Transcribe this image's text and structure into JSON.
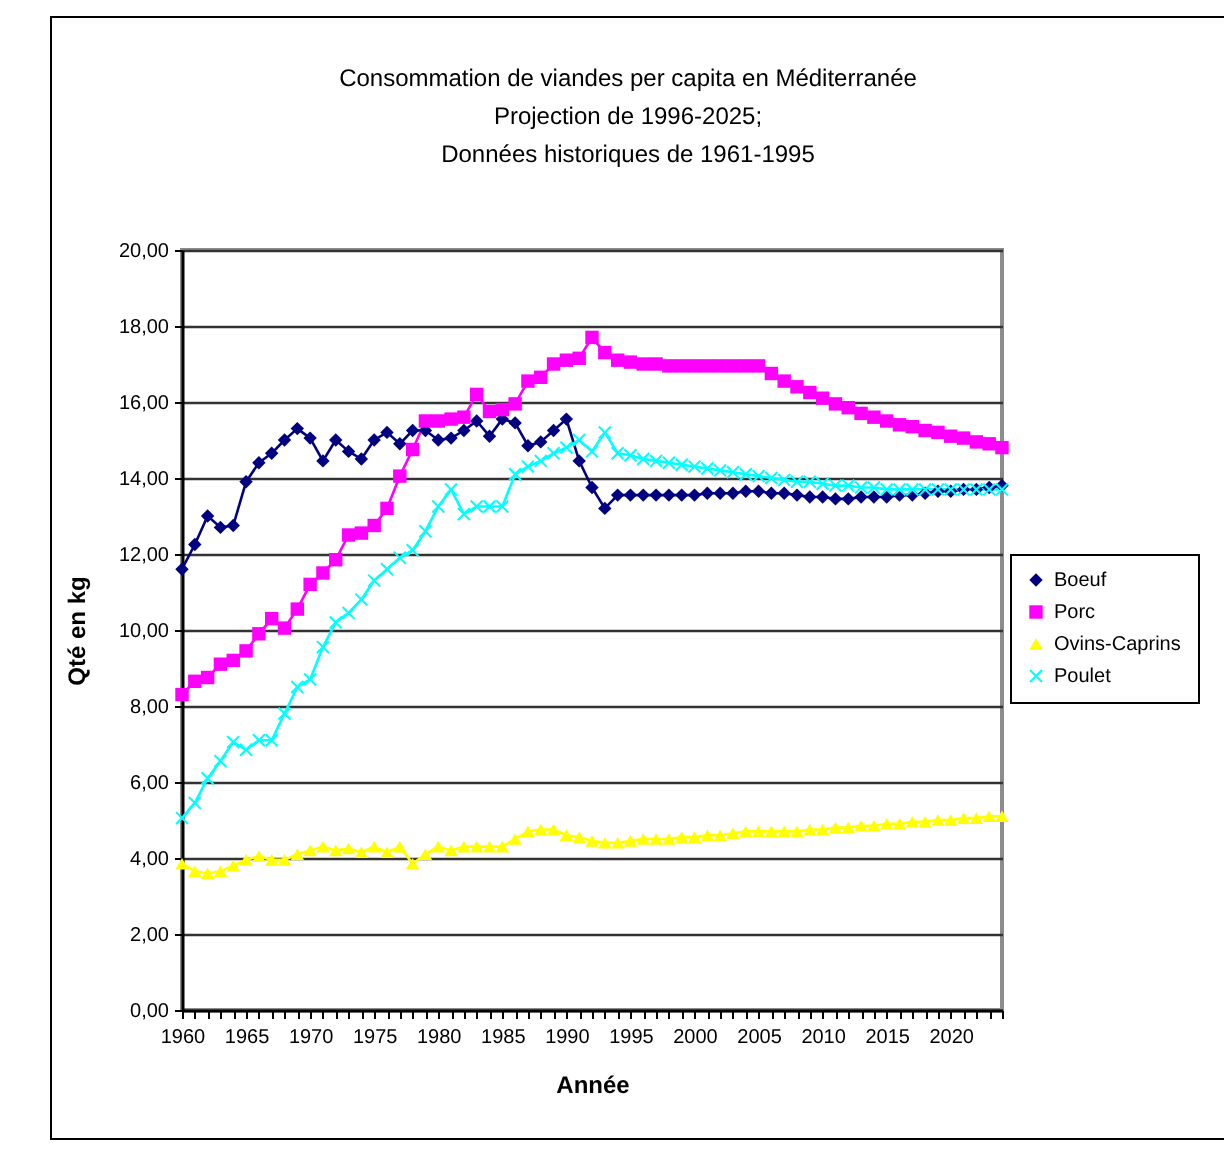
{
  "chart_data": {
    "type": "line",
    "title": "Consommation de viandes per capita en Méditerranée\nProjection de 1996-2025;\nDonnées historiques de 1961-1995",
    "xlabel": "Année",
    "ylabel": "Qté en kg",
    "x": [
      1960,
      1961,
      1962,
      1963,
      1964,
      1965,
      1966,
      1967,
      1968,
      1969,
      1970,
      1971,
      1972,
      1973,
      1974,
      1975,
      1976,
      1977,
      1978,
      1979,
      1980,
      1981,
      1982,
      1983,
      1984,
      1985,
      1986,
      1987,
      1988,
      1989,
      1990,
      1991,
      1992,
      1993,
      1994,
      1995,
      1996,
      1997,
      1998,
      1999,
      2000,
      2001,
      2002,
      2003,
      2004,
      2005,
      2006,
      2007,
      2008,
      2009,
      2010,
      2011,
      2012,
      2013,
      2014,
      2015,
      2016,
      2017,
      2018,
      2019,
      2020,
      2021,
      2022,
      2023,
      2024
    ],
    "series": [
      {
        "name": "Boeuf",
        "color": "#000080",
        "marker": "diamond",
        "values": [
          11.6,
          12.25,
          13.0,
          12.7,
          12.75,
          13.9,
          14.4,
          14.65,
          15.0,
          15.3,
          15.05,
          14.45,
          15.0,
          14.7,
          14.5,
          15.0,
          15.2,
          14.9,
          15.25,
          15.25,
          15.0,
          15.05,
          15.25,
          15.5,
          15.1,
          15.55,
          15.45,
          14.85,
          14.95,
          15.25,
          15.55,
          14.45,
          13.75,
          13.2,
          13.55,
          13.55,
          13.55,
          13.55,
          13.55,
          13.55,
          13.55,
          13.6,
          13.6,
          13.6,
          13.65,
          13.65,
          13.6,
          13.6,
          13.55,
          13.5,
          13.5,
          13.45,
          13.45,
          13.5,
          13.5,
          13.5,
          13.55,
          13.55,
          13.6,
          13.65,
          13.65,
          13.7,
          13.7,
          13.75,
          13.8
        ]
      },
      {
        "name": "Porc",
        "color": "#ff00ff",
        "marker": "square",
        "values": [
          8.3,
          8.65,
          8.75,
          9.1,
          9.2,
          9.45,
          9.9,
          10.3,
          10.05,
          10.55,
          11.2,
          11.5,
          11.85,
          12.5,
          12.55,
          12.75,
          13.2,
          14.05,
          14.75,
          15.5,
          15.5,
          15.55,
          15.6,
          16.2,
          15.75,
          15.8,
          15.95,
          16.55,
          16.65,
          17.0,
          17.1,
          17.15,
          17.7,
          17.3,
          17.1,
          17.05,
          17.0,
          17.0,
          16.95,
          16.95,
          16.95,
          16.95,
          16.95,
          16.95,
          16.95,
          16.95,
          16.75,
          16.55,
          16.4,
          16.25,
          16.1,
          15.95,
          15.85,
          15.7,
          15.6,
          15.5,
          15.4,
          15.35,
          15.25,
          15.2,
          15.1,
          15.05,
          14.95,
          14.9,
          14.8
        ]
      },
      {
        "name": "Ovins-Caprins",
        "color": "#ffff00",
        "marker": "triangle",
        "values": [
          3.85,
          3.65,
          3.6,
          3.65,
          3.8,
          3.95,
          4.05,
          3.95,
          3.95,
          4.1,
          4.2,
          4.3,
          4.2,
          4.25,
          4.15,
          4.3,
          4.15,
          4.3,
          3.85,
          4.1,
          4.3,
          4.2,
          4.3,
          4.3,
          4.3,
          4.3,
          4.5,
          4.7,
          4.75,
          4.75,
          4.6,
          4.55,
          4.45,
          4.4,
          4.4,
          4.45,
          4.5,
          4.5,
          4.5,
          4.55,
          4.55,
          4.6,
          4.6,
          4.65,
          4.7,
          4.7,
          4.7,
          4.7,
          4.7,
          4.75,
          4.75,
          4.8,
          4.8,
          4.85,
          4.85,
          4.9,
          4.9,
          4.95,
          4.95,
          5.0,
          5.0,
          5.05,
          5.05,
          5.1,
          5.1
        ]
      },
      {
        "name": "Poulet",
        "color": "#00ffff",
        "marker": "cross",
        "values": [
          5.05,
          5.45,
          6.1,
          6.55,
          7.05,
          6.85,
          7.1,
          7.1,
          7.8,
          8.5,
          8.7,
          9.55,
          10.2,
          10.45,
          10.8,
          11.3,
          11.6,
          11.9,
          12.1,
          12.6,
          13.25,
          13.7,
          13.05,
          13.25,
          13.25,
          13.25,
          14.1,
          14.3,
          14.45,
          14.65,
          14.8,
          15.0,
          14.7,
          15.2,
          14.65,
          14.6,
          14.5,
          14.45,
          14.4,
          14.35,
          14.3,
          14.25,
          14.2,
          14.15,
          14.1,
          14.05,
          14.0,
          13.95,
          13.9,
          13.9,
          13.85,
          13.8,
          13.8,
          13.75,
          13.75,
          13.7,
          13.7,
          13.7,
          13.7,
          13.7,
          13.7,
          13.7,
          13.7,
          13.7,
          13.7
        ]
      }
    ],
    "xlim": [
      1960,
      2024
    ],
    "xticks": [
      1960,
      {
        "value": 1961,
        "label": null
      },
      {
        "value": 1962,
        "label": null
      },
      {
        "value": 1963,
        "label": null
      },
      {
        "value": 1964,
        "label": null
      },
      1965,
      {
        "value": 1966,
        "label": null
      },
      {
        "value": 1967,
        "label": null
      },
      {
        "value": 1968,
        "label": null
      },
      {
        "value": 1969,
        "label": null
      },
      1970,
      {
        "value": 1971,
        "label": null
      },
      {
        "value": 1972,
        "label": null
      },
      {
        "value": 1973,
        "label": null
      },
      {
        "value": 1974,
        "label": null
      },
      1975,
      {
        "value": 1976,
        "label": null
      },
      {
        "value": 1977,
        "label": null
      },
      {
        "value": 1978,
        "label": null
      },
      {
        "value": 1979,
        "label": null
      },
      1980,
      {
        "value": 1981,
        "label": null
      },
      {
        "value": 1982,
        "label": null
      },
      {
        "value": 1983,
        "label": null
      },
      {
        "value": 1984,
        "label": null
      },
      1985,
      {
        "value": 1986,
        "label": null
      },
      {
        "value": 1987,
        "label": null
      },
      {
        "value": 1988,
        "label": null
      },
      {
        "value": 1989,
        "label": null
      },
      1990,
      {
        "value": 1991,
        "label": null
      },
      {
        "value": 1992,
        "label": null
      },
      {
        "value": 1993,
        "label": null
      },
      {
        "value": 1994,
        "label": null
      },
      1995,
      {
        "value": 1996,
        "label": null
      },
      {
        "value": 1997,
        "label": null
      },
      {
        "value": 1998,
        "label": null
      },
      {
        "value": 1999,
        "label": null
      },
      2000,
      {
        "value": 2001,
        "label": null
      },
      {
        "value": 2002,
        "label": null
      },
      {
        "value": 2003,
        "label": null
      },
      {
        "value": 2004,
        "label": null
      },
      2005,
      {
        "value": 2006,
        "label": null
      },
      {
        "value": 2007,
        "label": null
      },
      {
        "value": 2008,
        "label": null
      },
      {
        "value": 2009,
        "label": null
      },
      2010,
      {
        "value": 2011,
        "label": null
      },
      {
        "value": 2012,
        "label": null
      },
      {
        "value": 2013,
        "label": null
      },
      {
        "value": 2014,
        "label": null
      },
      2015,
      {
        "value": 2016,
        "label": null
      },
      {
        "value": 2017,
        "label": null
      },
      {
        "value": 2018,
        "label": null
      },
      {
        "value": 2019,
        "label": null
      },
      2020,
      {
        "value": 2021,
        "label": null
      },
      {
        "value": 2022,
        "label": null
      },
      {
        "value": 2023,
        "label": null
      },
      {
        "value": 2024,
        "label": null
      }
    ],
    "ylim": [
      0,
      20
    ],
    "yticks": [
      {
        "value": 0,
        "label": "0,00"
      },
      {
        "value": 2,
        "label": "2,00"
      },
      {
        "value": 4,
        "label": "4,00"
      },
      {
        "value": 6,
        "label": "6,00"
      },
      {
        "value": 8,
        "label": "8,00"
      },
      {
        "value": 10,
        "label": "10,00"
      },
      {
        "value": 12,
        "label": "12,00"
      },
      {
        "value": 14,
        "label": "14,00"
      },
      {
        "value": 16,
        "label": "16,00"
      },
      {
        "value": 18,
        "label": "18,00"
      },
      {
        "value": 20,
        "label": "20,00"
      }
    ],
    "grid": "y",
    "legend": "right",
    "line_style": "solid"
  }
}
